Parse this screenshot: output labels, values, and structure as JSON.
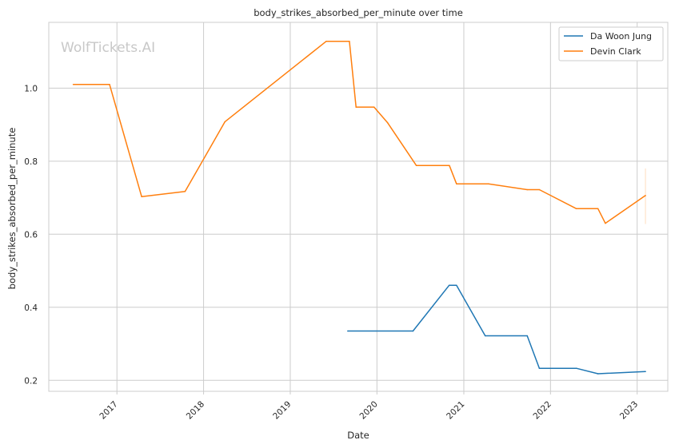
{
  "chart_data": {
    "type": "line",
    "title": "body_strikes_absorbed_per_minute over time",
    "xlabel": "Date",
    "ylabel": "body_strikes_absorbed_per_minute",
    "watermark": "WolfTickets.AI",
    "x_ticks": [
      "2017",
      "2018",
      "2019",
      "2020",
      "2021",
      "2022",
      "2023"
    ],
    "y_ticks": [
      "0.2",
      "0.4",
      "0.6",
      "0.8",
      "1.0"
    ],
    "xlim": [
      "2016-03-20",
      "2023-05-10"
    ],
    "ylim": [
      0.17,
      1.18
    ],
    "grid": true,
    "legend_position": "upper right",
    "series": [
      {
        "name": "Da Woon Jung",
        "color": "#1f77b4",
        "points": [
          [
            "2019-08-31",
            0.335
          ],
          [
            "2020-06-01",
            0.335
          ],
          [
            "2020-10-31",
            0.46
          ],
          [
            "2020-12-01",
            0.46
          ],
          [
            "2021-04-01",
            0.322
          ],
          [
            "2021-09-25",
            0.322
          ],
          [
            "2021-11-15",
            0.233
          ],
          [
            "2022-04-20",
            0.233
          ],
          [
            "2022-07-20",
            0.218
          ],
          [
            "2023-02-05",
            0.224
          ]
        ]
      },
      {
        "name": "Devin Clark",
        "color": "#ff7f0e",
        "points": [
          [
            "2016-07-01",
            1.01
          ],
          [
            "2016-12-01",
            1.01
          ],
          [
            "2017-04-15",
            0.703
          ],
          [
            "2017-10-15",
            0.717
          ],
          [
            "2018-04-01",
            0.908
          ],
          [
            "2019-06-01",
            1.128
          ],
          [
            "2019-09-07",
            1.128
          ],
          [
            "2019-10-05",
            0.948
          ],
          [
            "2019-12-20",
            0.948
          ],
          [
            "2020-02-15",
            0.905
          ],
          [
            "2020-06-15",
            0.788
          ],
          [
            "2020-11-01",
            0.788
          ],
          [
            "2020-12-01",
            0.738
          ],
          [
            "2021-04-15",
            0.738
          ],
          [
            "2021-09-25",
            0.722
          ],
          [
            "2021-11-15",
            0.722
          ],
          [
            "2022-04-20",
            0.67
          ],
          [
            "2022-07-20",
            0.67
          ],
          [
            "2022-08-20",
            0.63
          ],
          [
            "2023-02-05",
            0.706
          ]
        ]
      }
    ]
  }
}
